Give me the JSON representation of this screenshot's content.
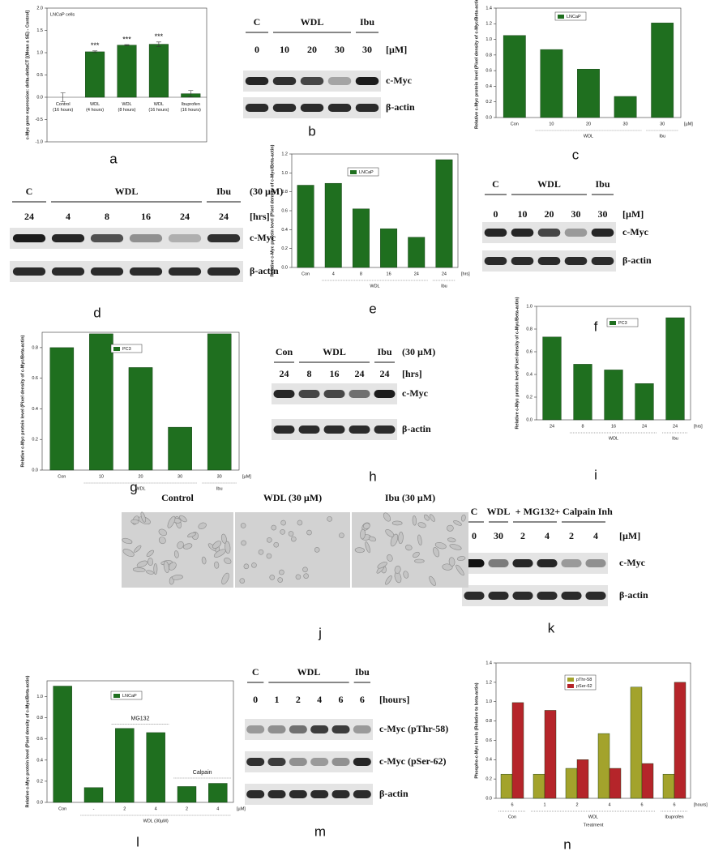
{
  "chart_data": [
    {
      "type": "bar",
      "panel": "a",
      "title": "LNCaP cells",
      "ylabel": "c-Myc gene expression: delta-deltaCT [(Mean ± SE) - Control]",
      "categories": [
        "Control (16 hours)",
        "WDL (4 hours)",
        "WDL (8 hours)",
        "WDL (16 hours)",
        "Ibuprofen (16 hours)"
      ],
      "series": [
        {
          "name": null,
          "color": "#1f6f1f",
          "values": [
            0,
            1.02,
            1.17,
            1.19,
            0.08
          ],
          "errors": [
            0.1,
            0.02,
            0.01,
            0.05,
            0.07
          ]
        }
      ],
      "annotations": [
        "***",
        "***",
        "***"
      ],
      "ylim": [
        -1,
        2
      ],
      "yticks": [
        {
          "value": -1,
          "label": "-1.0"
        },
        -0.5,
        {
          "value": 0,
          "label": "0.0"
        },
        0.5,
        {
          "value": 1,
          "label": "1.0"
        },
        1.5,
        {
          "value": 2,
          "label": "2.0"
        }
      ]
    },
    {
      "type": "bar",
      "panel": "c",
      "ylabel": "Relative c-Myc protein level (Pixel density of c-Myc/Beta-actin)",
      "categories": [
        "Con",
        "10",
        "20",
        "30",
        "30"
      ],
      "unit": "[µM]",
      "groups": [
        "WDL",
        "Ibu"
      ],
      "series": [
        {
          "name": "LNCaP",
          "color": "#1f6f1f",
          "values": [
            1.05,
            0.87,
            0.62,
            0.27,
            1.21
          ]
        }
      ],
      "ylim": [
        0,
        1.4
      ],
      "yticks": [
        {
          "value": 0,
          "label": "0.0"
        },
        0.2,
        0.4,
        0.6,
        0.8,
        {
          "value": 1,
          "label": "1.0"
        },
        1.2,
        1.4
      ]
    },
    {
      "type": "bar",
      "panel": "e",
      "ylabel": "Relative c-Myc protein level (Pixel density of c-Myc/Beta-actin)",
      "categories": [
        "Con",
        "4",
        "8",
        "16",
        "24",
        "24"
      ],
      "unit": "[hrs]",
      "groups": [
        "WDL",
        "Ibu"
      ],
      "series": [
        {
          "name": "LNCaP",
          "color": "#1f6f1f",
          "values": [
            0.87,
            0.89,
            0.62,
            0.41,
            0.32,
            1.14
          ]
        }
      ],
      "ylim": [
        0,
        1.2
      ],
      "yticks": [
        {
          "value": 0,
          "label": "0.0"
        },
        0.2,
        0.4,
        0.6,
        0.8,
        {
          "value": 1,
          "label": "1.0"
        },
        1.2
      ]
    },
    {
      "type": "bar",
      "panel": "g",
      "ylabel": "Relative c-Myc protein level (Pixel density of c-Myc/Beta-actin)",
      "categories": [
        "Con",
        "10",
        "20",
        "30",
        "30"
      ],
      "unit": "[µM]",
      "groups": [
        "WDL",
        "Ibu"
      ],
      "series": [
        {
          "name": "PC3",
          "color": "#1f6f1f",
          "values": [
            0.8,
            0.89,
            0.67,
            0.28,
            0.89
          ]
        }
      ],
      "ylim": [
        0,
        0.9
      ],
      "yticks": [
        {
          "value": 0,
          "label": "0.0"
        },
        0.2,
        0.4,
        0.6,
        0.8
      ]
    },
    {
      "type": "bar",
      "panel": "i",
      "ylabel": "Relative c-Myc protein level (Pixel density of c-Myc/Beta-actin)",
      "categories": [
        "24",
        "8",
        "16",
        "24",
        "24"
      ],
      "unit": "[hrs]",
      "groups": [
        "WDL",
        "Ibu"
      ],
      "series": [
        {
          "name": "PC3",
          "color": "#1f6f1f",
          "values": [
            0.73,
            0.49,
            0.44,
            0.32,
            0.9
          ]
        }
      ],
      "ylim": [
        0,
        1
      ],
      "yticks": [
        {
          "value": 0,
          "label": "0.0"
        },
        0.2,
        0.4,
        0.6,
        0.8,
        {
          "value": 1,
          "label": "1.0"
        }
      ]
    },
    {
      "type": "bar",
      "panel": "l",
      "ylabel": "Relative c-Myc protein level (Pixel density of c-Myc/Beta-actin)",
      "categories": [
        "Con",
        "-",
        "2",
        "4",
        "2",
        "4"
      ],
      "unit": "[µM]",
      "groups": [
        "WDL (30µM)"
      ],
      "annotations": [
        "MG132",
        "Calpain"
      ],
      "series": [
        {
          "name": "LNCaP",
          "color": "#1f6f1f",
          "values": [
            1.1,
            0.14,
            0.7,
            0.66,
            0.15,
            0.18
          ]
        }
      ],
      "ylim": [
        0,
        1.15
      ],
      "yticks": [
        {
          "value": 0,
          "label": "0.0"
        },
        0.2,
        0.4,
        0.6,
        0.8,
        {
          "value": 1,
          "label": "1.0"
        }
      ]
    },
    {
      "type": "bar",
      "panel": "n",
      "ylabel": "Phospho-c-Myc levels (Relative to beta-actin)",
      "xlabel": "Treatment",
      "categories": [
        "6",
        "1",
        "2",
        "4",
        "6",
        "6"
      ],
      "unit": "[hours]",
      "groups": [
        "Con",
        "WDL",
        "Ibuprofen"
      ],
      "series": [
        {
          "name": "pThr-58",
          "color": "#a3a32c",
          "values": [
            0.25,
            0.25,
            0.31,
            0.67,
            1.15,
            0.25
          ]
        },
        {
          "name": "pSer-62",
          "color": "#b5252a",
          "values": [
            0.99,
            0.91,
            0.4,
            0.31,
            0.36,
            1.2
          ]
        }
      ],
      "ylim": [
        0,
        1.4
      ],
      "yticks": [
        {
          "value": 0,
          "label": "0.0"
        },
        0.2,
        0.4,
        0.6,
        0.8,
        {
          "value": 1,
          "label": "1.0"
        },
        1.2,
        1.4
      ]
    }
  ],
  "blots": [
    {
      "panel": "b",
      "groups": [
        "C",
        "WDL",
        "Ibu"
      ],
      "lanes": [
        "0",
        "10",
        "20",
        "30",
        "30"
      ],
      "unit": "[µM]",
      "rows": [
        "c-Myc",
        "β-actin"
      ]
    },
    {
      "panel": "d",
      "groups": [
        "C",
        "WDL",
        "Ibu"
      ],
      "condition": "(30 µM)",
      "lanes": [
        "24",
        "4",
        "8",
        "16",
        "24",
        "24"
      ],
      "unit": "[hrs]",
      "rows": [
        "c-Myc",
        "β-actin"
      ]
    },
    {
      "panel": "f",
      "groups": [
        "C",
        "WDL",
        "Ibu"
      ],
      "lanes": [
        "0",
        "10",
        "20",
        "30",
        "30"
      ],
      "unit": "[µM]",
      "rows": [
        "c-Myc",
        "β-actin"
      ]
    },
    {
      "panel": "h",
      "groups": [
        "Con",
        "WDL",
        "Ibu"
      ],
      "condition": "(30 µM)",
      "lanes": [
        "24",
        "8",
        "16",
        "24",
        "24"
      ],
      "unit": "[hrs]",
      "rows": [
        "c-Myc",
        "β-actin"
      ]
    },
    {
      "panel": "k",
      "groups": [
        "C",
        "WDL",
        "+ MG132",
        "+ Calpain Inh"
      ],
      "lanes": [
        "0",
        "30",
        "2",
        "4",
        "2",
        "4"
      ],
      "unit": "[µM]",
      "rows": [
        "c-Myc",
        "β-actin"
      ]
    },
    {
      "panel": "m",
      "groups": [
        "C",
        "WDL",
        "Ibu"
      ],
      "lanes": [
        "0",
        "1",
        "2",
        "4",
        "6",
        "6"
      ],
      "unit": "[hours]",
      "rows": [
        "c-Myc (pThr-58)",
        "c-Myc (pSer-62)",
        "β-actin"
      ]
    }
  ],
  "micrographs": {
    "panel": "j",
    "titles": [
      "Control",
      "WDL  (30 µM)",
      "Ibu  (30 µM)"
    ]
  }
}
